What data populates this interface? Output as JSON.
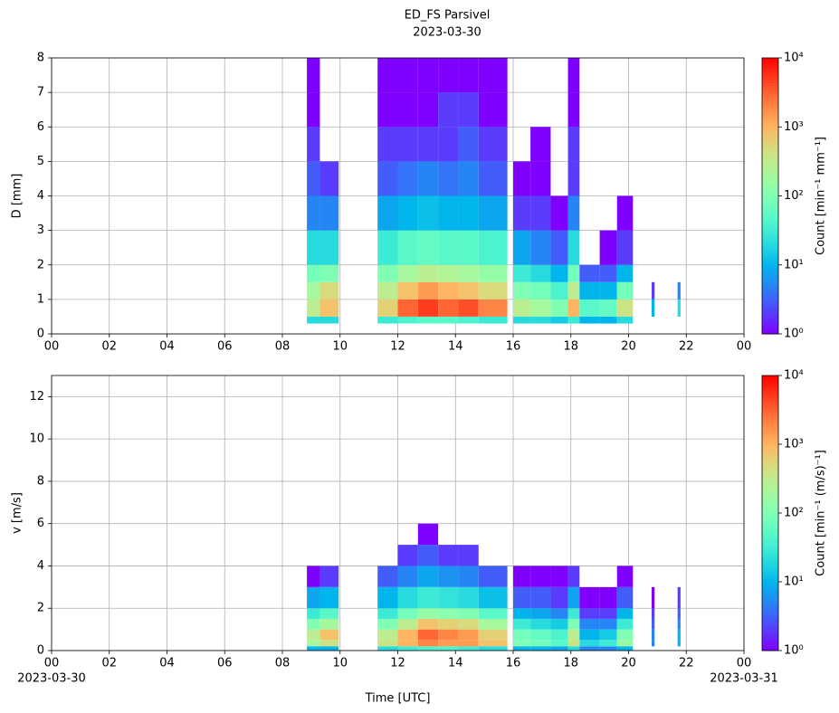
{
  "title": "ED_FS Parsivel",
  "subtitle": "2023-03-30",
  "chart_data": [
    {
      "type": "heatmap",
      "ylabel": "D [mm]",
      "colormap": "rainbow",
      "log_color": true,
      "grid": true,
      "x": [
        8.85,
        9.3,
        9.95,
        11.3,
        12,
        12.7,
        13.4,
        14.1,
        14.8,
        15.8,
        16,
        16.6,
        17.3,
        17.9,
        18.3,
        19,
        19.6,
        20.15,
        20.8,
        20.9,
        21.7,
        21.8
      ],
      "y": [
        0.3,
        0.5,
        1,
        1.5,
        2,
        3,
        4,
        5,
        6,
        7,
        8
      ],
      "z": [
        [
          20,
          300,
          200,
          80,
          20,
          5,
          3,
          2,
          1,
          1
        ],
        [
          20,
          800,
          500,
          100,
          20,
          5,
          2,
          null,
          null,
          null
        ],
        [
          null,
          null,
          null,
          null,
          null,
          null,
          null,
          null,
          null,
          null
        ],
        [
          30,
          600,
          300,
          100,
          30,
          8,
          3,
          2,
          1,
          1
        ],
        [
          40,
          3000,
          800,
          200,
          50,
          10,
          4,
          2,
          1,
          1
        ],
        [
          50,
          5000,
          1500,
          300,
          60,
          12,
          5,
          2,
          1,
          1
        ],
        [
          50,
          3000,
          1000,
          250,
          50,
          10,
          4,
          2,
          2,
          1
        ],
        [
          40,
          4000,
          800,
          200,
          50,
          10,
          5,
          3,
          2,
          1
        ],
        [
          30,
          2000,
          500,
          150,
          40,
          8,
          3,
          2,
          1,
          1
        ],
        [
          null,
          null,
          null,
          null,
          null,
          null,
          null,
          null,
          null,
          null
        ],
        [
          20,
          300,
          100,
          30,
          8,
          2,
          1,
          null,
          null,
          null
        ],
        [
          20,
          200,
          80,
          20,
          5,
          2,
          1,
          1,
          null,
          null
        ],
        [
          15,
          100,
          40,
          10,
          3,
          1,
          null,
          null,
          null,
          null
        ],
        [
          30,
          1000,
          300,
          80,
          20,
          5,
          2,
          2,
          1,
          1
        ],
        [
          10,
          50,
          10,
          3,
          null,
          null,
          null,
          null,
          null,
          null
        ],
        [
          10,
          60,
          10,
          3,
          1,
          null,
          null,
          null,
          null,
          null
        ],
        [
          20,
          400,
          80,
          10,
          2,
          1,
          null,
          null,
          null,
          null
        ],
        [
          null,
          null,
          null,
          null,
          null,
          null,
          null,
          null,
          null,
          null
        ],
        [
          null,
          10,
          2,
          null,
          null,
          null,
          null,
          null,
          null,
          null
        ],
        [
          null,
          null,
          null,
          null,
          null,
          null,
          null,
          null,
          null,
          null
        ],
        [
          null,
          20,
          5,
          null,
          null,
          null,
          null,
          null,
          null,
          null
        ]
      ],
      "xlim": [
        0,
        24
      ],
      "xticks": [
        {
          "value": 0,
          "label": "00"
        },
        {
          "value": 2,
          "label": "02"
        },
        {
          "value": 4,
          "label": "04"
        },
        {
          "value": 6,
          "label": "06"
        },
        {
          "value": 8,
          "label": "08"
        },
        10,
        12,
        14,
        16,
        18,
        20,
        22,
        {
          "value": 24,
          "label": "00"
        }
      ],
      "ylim": [
        0,
        8
      ],
      "yticks": [
        0,
        1,
        2,
        3,
        4,
        5,
        6,
        7,
        8
      ],
      "clim": [
        1,
        10000
      ],
      "cticks": [
        {
          "value": 1,
          "label": "10⁰"
        },
        {
          "value": 10,
          "label": "10¹"
        },
        {
          "value": 100,
          "label": "10²"
        },
        {
          "value": 1000,
          "label": "10³"
        },
        {
          "value": 10000,
          "label": "10⁴"
        }
      ],
      "clabel": "Count [min⁻¹ mm⁻¹]"
    },
    {
      "type": "heatmap",
      "ylabel": "v [m/s]",
      "xlabel": "Time [UTC]",
      "date_labels": [
        "2023-03-30",
        "2023-03-31"
      ],
      "colormap": "rainbow",
      "log_color": true,
      "grid": true,
      "x": [
        8.85,
        9.3,
        9.95,
        11.3,
        12,
        12.7,
        13.4,
        14.1,
        14.8,
        15.8,
        16,
        16.6,
        17.3,
        17.9,
        18.3,
        19,
        19.6,
        20.15,
        20.8,
        20.9,
        21.7,
        21.8
      ],
      "y": [
        0,
        0.2,
        0.5,
        1,
        1.5,
        2,
        3,
        4,
        5,
        6,
        7
      ],
      "z": [
        [
          10,
          200,
          300,
          100,
          30,
          8,
          1,
          null,
          null,
          null
        ],
        [
          10,
          400,
          800,
          200,
          50,
          10,
          2,
          null,
          null,
          null
        ],
        [
          null,
          null,
          null,
          null,
          null,
          null,
          null,
          null,
          null,
          null
        ],
        [
          20,
          400,
          300,
          100,
          30,
          10,
          3,
          null,
          null,
          null
        ],
        [
          30,
          1000,
          1000,
          300,
          80,
          20,
          5,
          2,
          null,
          null
        ],
        [
          40,
          2000,
          3000,
          800,
          150,
          30,
          8,
          3,
          1,
          null
        ],
        [
          40,
          1500,
          2000,
          600,
          120,
          25,
          6,
          2,
          null,
          null
        ],
        [
          30,
          1500,
          1500,
          500,
          100,
          20,
          5,
          2,
          null,
          null
        ],
        [
          20,
          800,
          600,
          200,
          50,
          12,
          3,
          null,
          null,
          null
        ],
        [
          null,
          null,
          null,
          null,
          null,
          null,
          null,
          null,
          null,
          null
        ],
        [
          10,
          100,
          80,
          30,
          10,
          3,
          1,
          null,
          null,
          null
        ],
        [
          10,
          80,
          60,
          20,
          8,
          3,
          1,
          null,
          null,
          null
        ],
        [
          8,
          50,
          40,
          15,
          5,
          2,
          1,
          null,
          null,
          null
        ],
        [
          20,
          400,
          300,
          100,
          30,
          8,
          2,
          null,
          null,
          null
        ],
        [
          5,
          20,
          10,
          5,
          2,
          1,
          null,
          null,
          null,
          null
        ],
        [
          5,
          30,
          15,
          5,
          2,
          1,
          null,
          null,
          null,
          null
        ],
        [
          10,
          150,
          100,
          30,
          10,
          3,
          1,
          null,
          null,
          null
        ],
        [
          null,
          null,
          null,
          null,
          null,
          null,
          null,
          null,
          null,
          null
        ],
        [
          null,
          5,
          5,
          3,
          2,
          1,
          null,
          null,
          null,
          null
        ],
        [
          null,
          null,
          null,
          null,
          null,
          null,
          null,
          null,
          null,
          null
        ],
        [
          null,
          10,
          10,
          5,
          3,
          2,
          null,
          null,
          null,
          null
        ]
      ],
      "xlim": [
        0,
        24
      ],
      "xticks": [
        {
          "value": 0,
          "label": "00"
        },
        {
          "value": 2,
          "label": "02"
        },
        {
          "value": 4,
          "label": "04"
        },
        {
          "value": 6,
          "label": "06"
        },
        {
          "value": 8,
          "label": "08"
        },
        10,
        12,
        14,
        16,
        18,
        20,
        22,
        {
          "value": 24,
          "label": "00"
        }
      ],
      "ylim": [
        0,
        13
      ],
      "yticks": [
        0,
        2,
        4,
        6,
        8,
        10,
        12
      ],
      "clim": [
        1,
        10000
      ],
      "cticks": [
        {
          "value": 1,
          "label": "10⁰"
        },
        {
          "value": 10,
          "label": "10¹"
        },
        {
          "value": 100,
          "label": "10²"
        },
        {
          "value": 1000,
          "label": "10³"
        },
        {
          "value": 10000,
          "label": "10⁴"
        }
      ],
      "clabel": "Count [min⁻¹ (m/s)⁻¹]"
    }
  ]
}
